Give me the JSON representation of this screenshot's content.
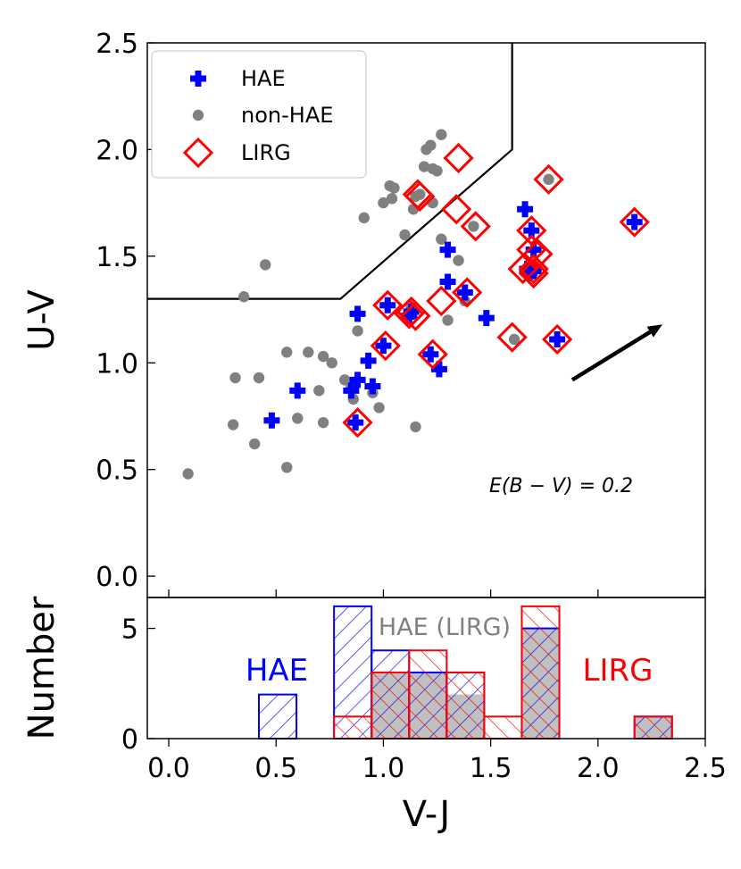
{
  "colors": {
    "hae": "#0000ff",
    "nonhae": "#808080",
    "lirg": "#ff0000",
    "frame": "#000000"
  },
  "chart_data": [
    {
      "type": "scatter",
      "xlabel": "",
      "ylabel": "U-V",
      "xlim": [
        -0.1,
        2.5
      ],
      "ylim": [
        -0.1,
        2.5
      ],
      "yticks": [
        "0.0",
        "0.5",
        "1.0",
        "1.5",
        "2.0",
        "2.5"
      ],
      "selection_boundary": {
        "x": [
          -0.1,
          0.8,
          1.6,
          1.6
        ],
        "y": [
          1.3,
          1.3,
          2.0,
          2.5
        ]
      },
      "reddening_vector": {
        "label": "E(B − V) = 0.2",
        "from": [
          1.88,
          0.92
        ],
        "to": [
          2.3,
          1.18
        ]
      },
      "legend": {
        "position": "top-left",
        "entries": [
          "HAE",
          "non-HAE",
          "LIRG"
        ]
      },
      "series": [
        {
          "name": "HAE",
          "marker": "plus",
          "x": [
            0.48,
            0.6,
            0.87,
            0.88,
            0.85,
            0.88,
            0.93,
            0.95,
            1.0,
            1.02,
            1.12,
            1.13,
            1.22,
            1.26,
            1.3,
            1.3,
            1.38,
            1.48,
            1.66,
            1.67,
            1.68,
            1.69,
            1.7,
            1.7,
            1.81,
            2.17
          ],
          "y": [
            0.73,
            0.87,
            0.72,
            0.92,
            0.87,
            1.23,
            1.01,
            0.89,
            1.08,
            1.27,
            1.22,
            1.24,
            1.04,
            0.97,
            1.53,
            1.38,
            1.33,
            1.21,
            1.72,
            1.44,
            1.42,
            1.62,
            1.53,
            1.43,
            1.11,
            1.66
          ]
        },
        {
          "name": "non-HAE",
          "marker": "circle",
          "x": [
            0.09,
            0.3,
            0.31,
            0.35,
            0.4,
            0.42,
            0.45,
            0.55,
            0.55,
            0.6,
            0.65,
            0.7,
            0.72,
            0.72,
            0.76,
            0.82,
            0.85,
            0.86,
            0.88,
            0.91,
            0.95,
            0.98,
            1.0,
            1.03,
            1.04,
            1.05,
            1.1,
            1.11,
            1.13,
            1.14,
            1.15,
            1.15,
            1.17,
            1.19,
            1.2,
            1.22,
            1.23,
            1.23,
            1.25,
            1.27,
            1.27,
            1.3,
            1.35,
            1.38,
            1.42,
            1.61,
            1.77
          ],
          "y": [
            0.48,
            0.71,
            0.93,
            1.31,
            0.62,
            0.93,
            1.46,
            0.51,
            1.05,
            0.74,
            1.05,
            0.87,
            1.03,
            0.72,
            1.0,
            0.92,
            0.89,
            0.83,
            1.15,
            1.68,
            0.86,
            0.79,
            1.75,
            1.83,
            1.77,
            1.82,
            1.6,
            1.22,
            1.26,
            1.72,
            0.7,
            1.78,
            1.79,
            1.92,
            2.0,
            2.02,
            1.91,
            1.75,
            1.9,
            2.07,
            1.58,
            1.2,
            1.48,
            1.29,
            1.64,
            1.11,
            1.86
          ]
        },
        {
          "name": "LIRG",
          "marker": "diamond",
          "x": [
            0.88,
            1.01,
            1.02,
            1.12,
            1.13,
            1.15,
            1.16,
            1.17,
            1.23,
            1.27,
            1.34,
            1.35,
            1.39,
            1.43,
            1.6,
            1.65,
            1.69,
            1.69,
            1.7,
            1.7,
            1.72,
            1.77,
            1.81,
            2.17
          ],
          "y": [
            0.72,
            1.08,
            1.27,
            1.23,
            1.24,
            1.22,
            1.79,
            1.78,
            1.04,
            1.29,
            1.72,
            1.96,
            1.33,
            1.64,
            1.12,
            1.44,
            1.62,
            1.53,
            1.44,
            1.42,
            1.51,
            1.86,
            1.11,
            1.66
          ]
        }
      ]
    },
    {
      "type": "bar",
      "xlabel": "V-J",
      "ylabel": "Number",
      "xlim": [
        -0.1,
        2.5
      ],
      "ylim": [
        0,
        6.4
      ],
      "xticks": [
        "0.0",
        "0.5",
        "1.0",
        "1.5",
        "2.0",
        "2.5"
      ],
      "yticks": [
        "0",
        "5"
      ],
      "annotations": [
        "HAE",
        "HAE (LIRG)",
        "LIRG"
      ],
      "series": [
        {
          "name": "HAE",
          "bin_edges": [
            0.42,
            0.595,
            0.77,
            0.945,
            1.12,
            1.295,
            1.47,
            1.645,
            1.82,
            1.995,
            2.17,
            2.345
          ],
          "counts": [
            2,
            0,
            6,
            4,
            3,
            3,
            0,
            5,
            0,
            0,
            1
          ]
        },
        {
          "name": "LIRG",
          "bin_edges": [
            0.77,
            0.945,
            1.12,
            1.295,
            1.47,
            1.645,
            1.82,
            1.995,
            2.17,
            2.345
          ],
          "counts": [
            1,
            3,
            4,
            3,
            1,
            6,
            0,
            0,
            1
          ]
        },
        {
          "name": "HAE (LIRG)",
          "bin_edges": [
            0.945,
            1.12,
            1.295,
            1.47,
            1.645,
            1.82,
            1.995,
            2.17,
            2.345
          ],
          "counts": [
            3,
            3,
            2,
            0,
            5,
            0,
            0,
            1
          ]
        }
      ]
    }
  ]
}
